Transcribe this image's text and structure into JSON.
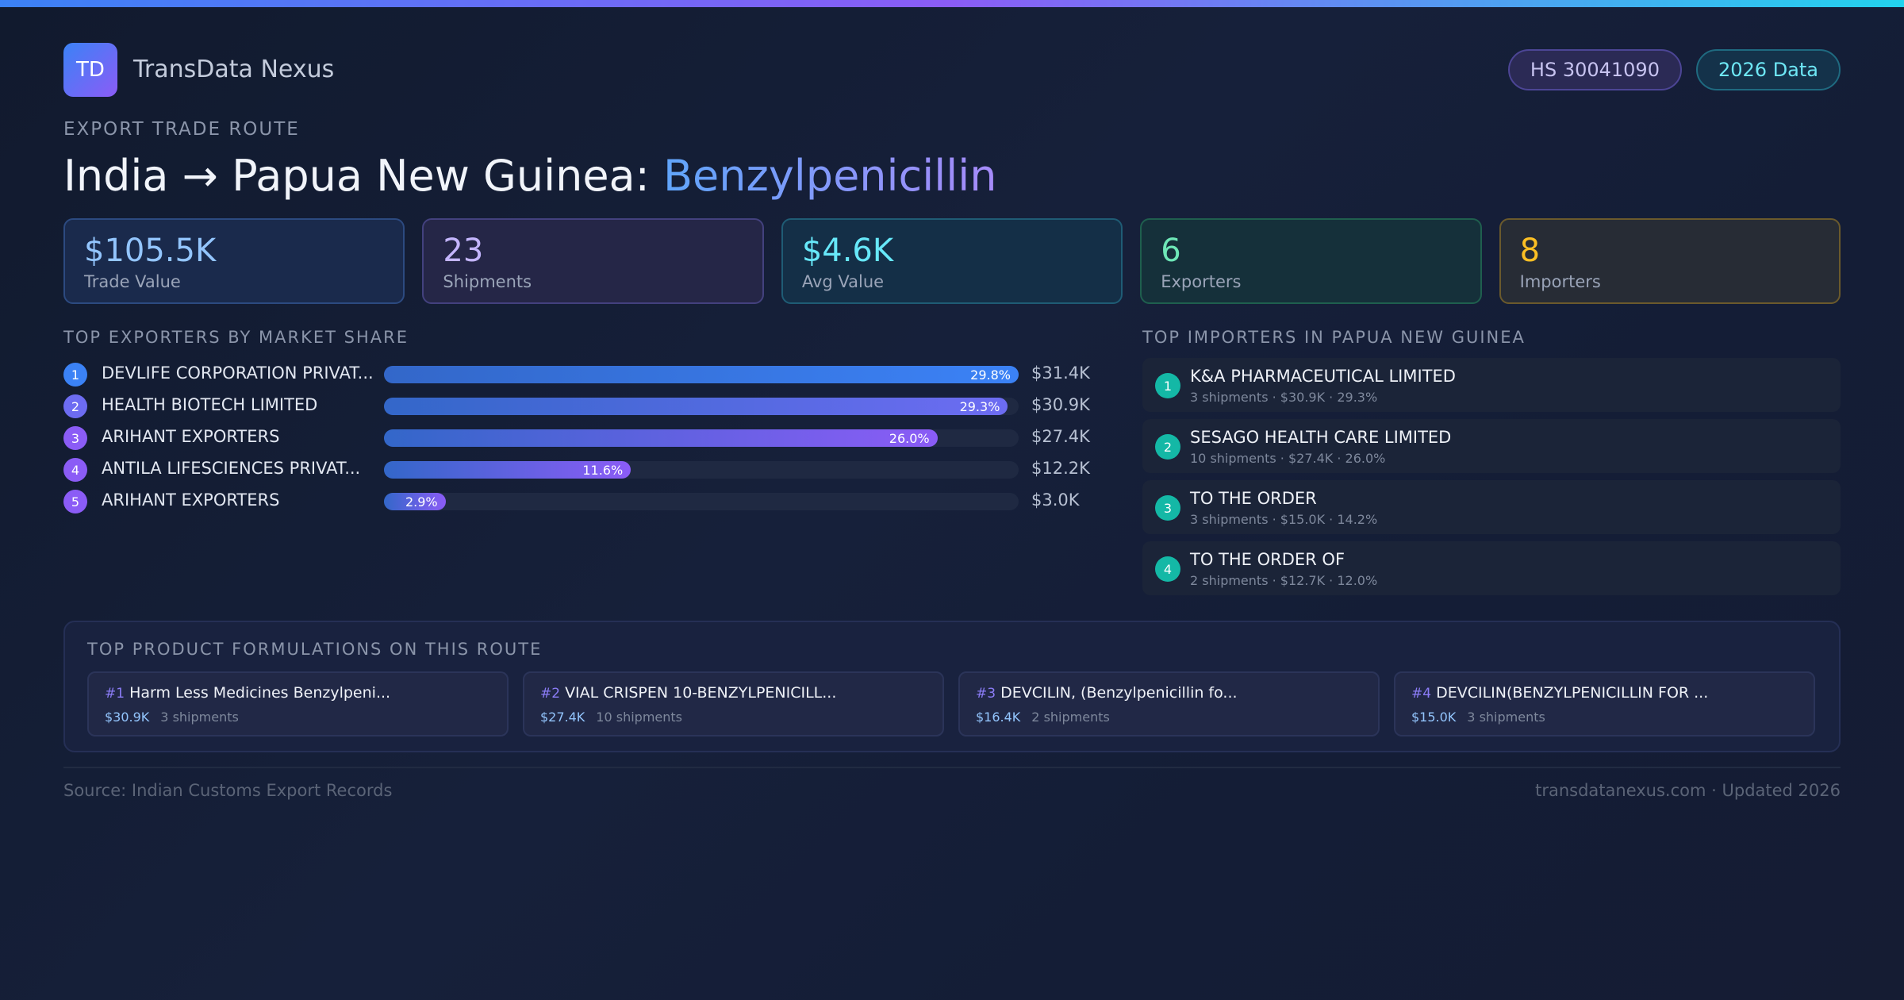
{
  "brand": {
    "logo_text": "TD",
    "name": "TransData Nexus"
  },
  "badges": {
    "hs_code": "HS 30041090",
    "year": "2026 Data"
  },
  "eyebrow": "EXPORT TRADE ROUTE",
  "title": {
    "route": "India → Papua New Guinea: ",
    "product": "Benzylpenicillin"
  },
  "stats": [
    {
      "value": "$105.5K",
      "label": "Trade Value"
    },
    {
      "value": "23",
      "label": "Shipments"
    },
    {
      "value": "$4.6K",
      "label": "Avg Value"
    },
    {
      "value": "6",
      "label": "Exporters"
    },
    {
      "value": "8",
      "label": "Importers"
    }
  ],
  "exporters": {
    "title": "TOP EXPORTERS BY MARKET SHARE",
    "items": [
      {
        "rank": "1",
        "name": "DEVLIFE CORPORATION PRIVAT...",
        "share_label": "29.8%",
        "value": "$31.4K",
        "fill_fraction": 1.0,
        "color": "#3b82f6"
      },
      {
        "rank": "2",
        "name": "HEALTH BIOTECH LIMITED",
        "share_label": "29.3%",
        "value": "$30.9K",
        "fill_fraction": 0.983,
        "color": "#6d6cf2"
      },
      {
        "rank": "3",
        "name": "ARIHANT EXPORTERS",
        "share_label": "26.0%",
        "value": "$27.4K",
        "fill_fraction": 0.872,
        "color": "#8b5cf6"
      },
      {
        "rank": "4",
        "name": "ANTILA LIFESCIENCES PRIVAT...",
        "share_label": "11.6%",
        "value": "$12.2K",
        "fill_fraction": 0.389,
        "color": "#8b5cf6"
      },
      {
        "rank": "5",
        "name": "ARIHANT EXPORTERS",
        "share_label": "2.9%",
        "value": "$3.0K",
        "fill_fraction": 0.097,
        "color": "#8b5cf6"
      }
    ]
  },
  "importers": {
    "title": "TOP IMPORTERS IN PAPUA NEW GUINEA",
    "items": [
      {
        "rank": "1",
        "name": "K&A PHARMACEUTICAL LIMITED",
        "meta": "3 shipments · $30.9K · 29.3%"
      },
      {
        "rank": "2",
        "name": "SESAGO HEALTH CARE LIMITED",
        "meta": "10 shipments · $27.4K · 26.0%"
      },
      {
        "rank": "3",
        "name": "TO THE ORDER",
        "meta": "3 shipments · $15.0K · 14.2%"
      },
      {
        "rank": "4",
        "name": "TO THE ORDER OF",
        "meta": "2 shipments · $12.7K · 12.0%"
      }
    ]
  },
  "products": {
    "title": "TOP PRODUCT FORMULATIONS ON THIS ROUTE",
    "items": [
      {
        "rank": "#1",
        "name": "Harm Less Medicines Benzylpeni...",
        "value": "$30.9K",
        "shipments": "3 shipments"
      },
      {
        "rank": "#2",
        "name": "VIAL CRISPEN 10-BENZYLPENICILL...",
        "value": "$27.4K",
        "shipments": "10 shipments"
      },
      {
        "rank": "#3",
        "name": "DEVCILIN, (Benzylpenicillin fo...",
        "value": "$16.4K",
        "shipments": "2 shipments"
      },
      {
        "rank": "#4",
        "name": "DEVCILIN(BENZYLPENICILLIN FOR ...",
        "value": "$15.0K",
        "shipments": "3 shipments"
      }
    ]
  },
  "footer": {
    "source": "Source: Indian Customs Export Records",
    "site": "transdatanexus.com · Updated 2026"
  }
}
